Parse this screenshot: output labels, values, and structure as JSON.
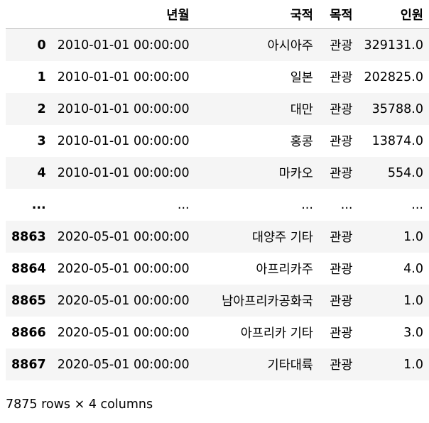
{
  "dataframe": {
    "columns": [
      "년월",
      "국적",
      "목적",
      "인원"
    ],
    "rows": [
      {
        "index": "0",
        "cells": [
          "2010-01-01 00:00:00",
          "아시아주",
          "관광",
          "329131.0"
        ]
      },
      {
        "index": "1",
        "cells": [
          "2010-01-01 00:00:00",
          "일본",
          "관광",
          "202825.0"
        ]
      },
      {
        "index": "2",
        "cells": [
          "2010-01-01 00:00:00",
          "대만",
          "관광",
          "35788.0"
        ]
      },
      {
        "index": "3",
        "cells": [
          "2010-01-01 00:00:00",
          "홍콩",
          "관광",
          "13874.0"
        ]
      },
      {
        "index": "4",
        "cells": [
          "2010-01-01 00:00:00",
          "마카오",
          "관광",
          "554.0"
        ]
      },
      {
        "index": "...",
        "cells": [
          "...",
          "...",
          "...",
          "..."
        ]
      },
      {
        "index": "8863",
        "cells": [
          "2020-05-01 00:00:00",
          "대양주 기타",
          "관광",
          "1.0"
        ]
      },
      {
        "index": "8864",
        "cells": [
          "2020-05-01 00:00:00",
          "아프리카주",
          "관광",
          "4.0"
        ]
      },
      {
        "index": "8865",
        "cells": [
          "2020-05-01 00:00:00",
          "남아프리카공화국",
          "관광",
          "1.0"
        ]
      },
      {
        "index": "8866",
        "cells": [
          "2020-05-01 00:00:00",
          "아프리카 기타",
          "관광",
          "3.0"
        ]
      },
      {
        "index": "8867",
        "cells": [
          "2020-05-01 00:00:00",
          "기타대륙",
          "관광",
          "1.0"
        ]
      }
    ],
    "shape_text": "7875 rows × 4 columns"
  }
}
